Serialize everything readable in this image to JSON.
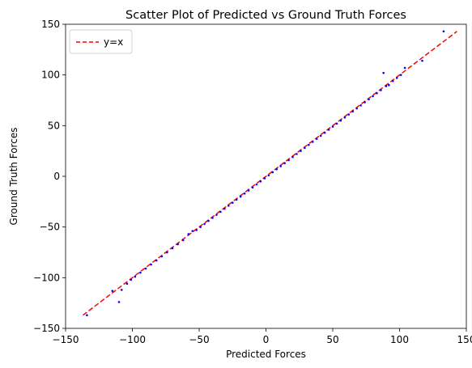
{
  "chart_data": {
    "type": "scatter",
    "title": "Scatter Plot of Predicted vs Ground Truth Forces",
    "xlabel": "Predicted Forces",
    "ylabel": "Ground Truth Forces",
    "xlim": [
      -150,
      150
    ],
    "ylim": [
      -150,
      150
    ],
    "xticks": [
      -150,
      -100,
      -50,
      0,
      50,
      100,
      150
    ],
    "yticks": [
      -150,
      -100,
      -50,
      0,
      50,
      100,
      150
    ],
    "xtick_labels": [
      "−150",
      "−100",
      "−50",
      "0",
      "50",
      "100",
      "150"
    ],
    "ytick_labels": [
      "−150",
      "−100",
      "−50",
      "0",
      "50",
      "100",
      "150"
    ],
    "grid": false,
    "legend": {
      "position": "top-left",
      "entries": [
        "y=x"
      ]
    },
    "colors": {
      "points": "#0000ff",
      "reference_line": "#ff0000"
    },
    "reference_line": {
      "name": "y=x",
      "style": "dashed",
      "x": [
        -137,
        143
      ],
      "y": [
        -137,
        143
      ]
    },
    "series": [
      {
        "type": "scatter",
        "x": [
          -134,
          -115,
          -110,
          -108,
          -104,
          -101,
          -98,
          -94,
          -90,
          -86,
          -82,
          -78,
          -74,
          -70,
          -66,
          -62,
          -58,
          -55,
          -52,
          -49,
          -46,
          -43,
          -40,
          -37,
          -34,
          -31,
          -28,
          -25,
          -22,
          -19,
          -16,
          -13,
          -10,
          -7,
          -4,
          -1,
          2,
          5,
          8,
          11,
          14,
          17,
          20,
          23,
          26,
          29,
          32,
          35,
          38,
          41,
          44,
          47,
          50,
          53,
          56,
          59,
          62,
          65,
          68,
          71,
          74,
          77,
          80,
          83,
          86,
          88,
          90,
          92,
          95,
          98,
          101,
          104,
          117,
          133
        ],
        "y": [
          -137,
          -113,
          -124,
          -112,
          -106,
          -102,
          -99,
          -95,
          -91,
          -87,
          -83,
          -79,
          -75,
          -71,
          -67,
          -63,
          -57,
          -54,
          -53,
          -50,
          -47,
          -44,
          -41,
          -38,
          -35,
          -32,
          -29,
          -26,
          -23,
          -20,
          -17,
          -14,
          -11,
          -8,
          -5,
          -2,
          1,
          4,
          7,
          10,
          13,
          16,
          19,
          22,
          25,
          28,
          31,
          34,
          37,
          40,
          43,
          46,
          49,
          52,
          55,
          58,
          61,
          64,
          67,
          70,
          73,
          76,
          79,
          82,
          85,
          102,
          89,
          90,
          94,
          97,
          100,
          107,
          114,
          143
        ]
      }
    ]
  }
}
